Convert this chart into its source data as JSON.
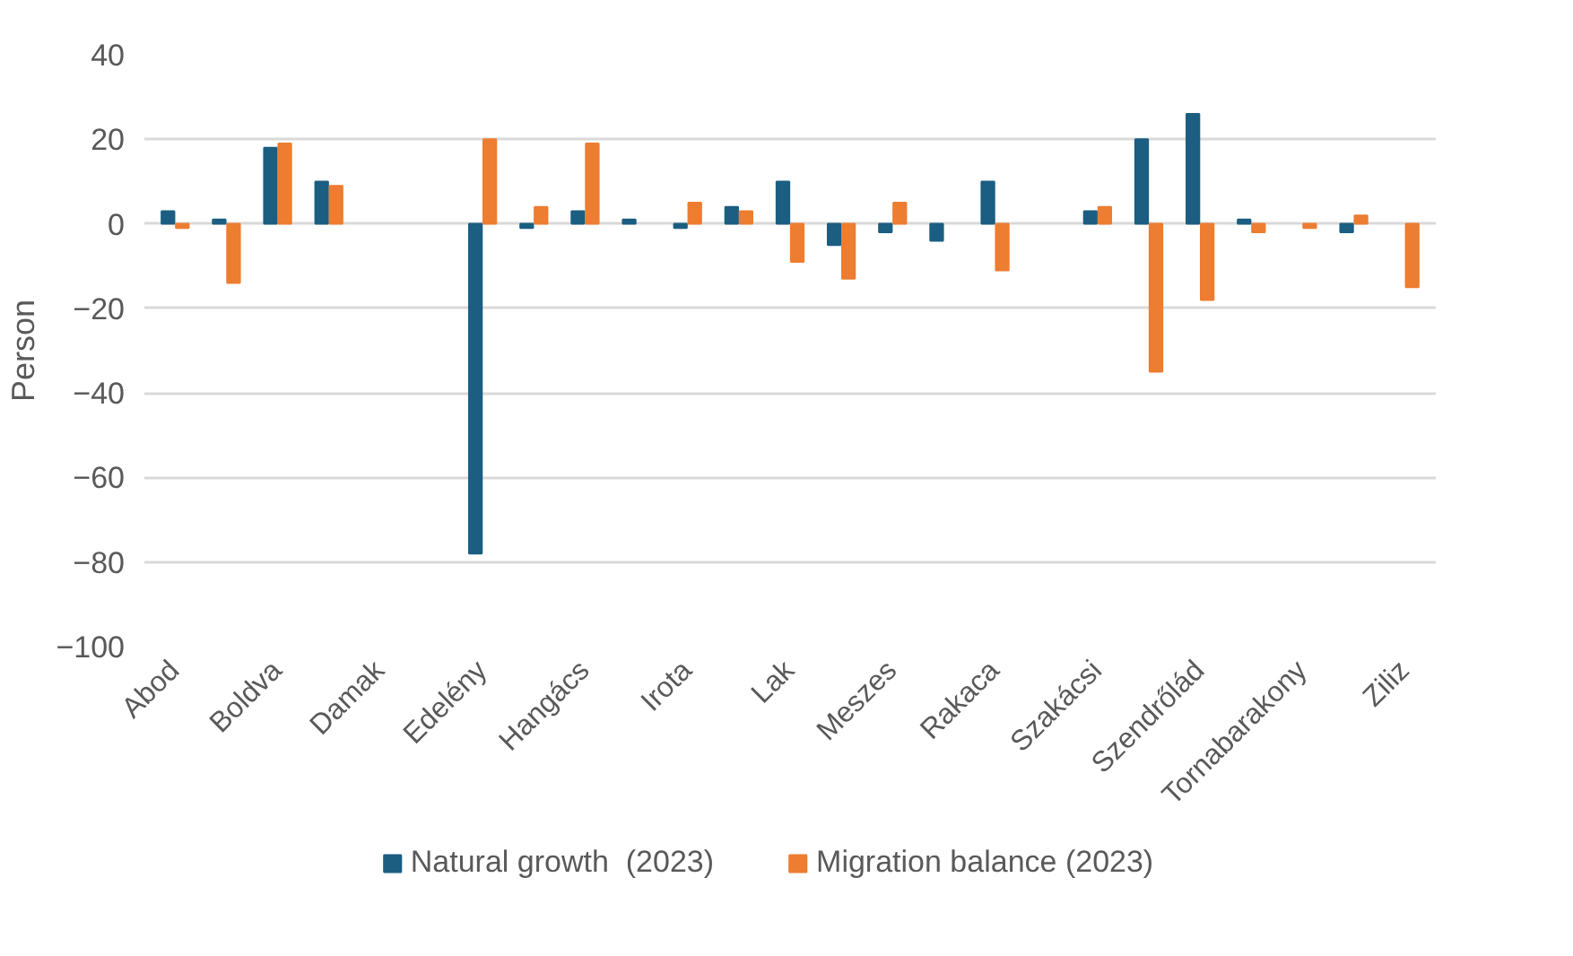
{
  "chart_data": {
    "type": "bar",
    "ylabel": "Person",
    "categories": [
      "Abod",
      null,
      "Boldva",
      null,
      "Damak",
      null,
      "Edelény",
      null,
      "Hangács",
      null,
      "Irota",
      null,
      "Lak",
      null,
      "Meszes",
      null,
      "Rakaca",
      null,
      "Szakácsi",
      null,
      "Szendrőlád",
      null,
      "Tornabarakony",
      null,
      "Ziliz"
    ],
    "series": [
      {
        "name": "Natural growth  (2023)",
        "color": "#1b5e82",
        "values": [
          3,
          1,
          18,
          10,
          null,
          null,
          -78,
          -1,
          3,
          1,
          -1,
          4,
          10,
          -5,
          -2,
          -4,
          10,
          null,
          3,
          20,
          26,
          1,
          null,
          -2,
          null
        ]
      },
      {
        "name": "Migration balance (2023)",
        "color": "#ed7d31",
        "values": [
          -1,
          -14,
          19,
          9,
          null,
          null,
          20,
          4,
          19,
          null,
          5,
          3,
          -9,
          -13,
          5,
          null,
          -11,
          null,
          4,
          -35,
          -18,
          -2,
          -1,
          2,
          -15
        ]
      }
    ],
    "ylim": [
      -100,
      40
    ],
    "yticks": [
      -100,
      -80,
      -60,
      -40,
      -20,
      0,
      20,
      40
    ],
    "grid": "y",
    "legend": "bottom"
  }
}
